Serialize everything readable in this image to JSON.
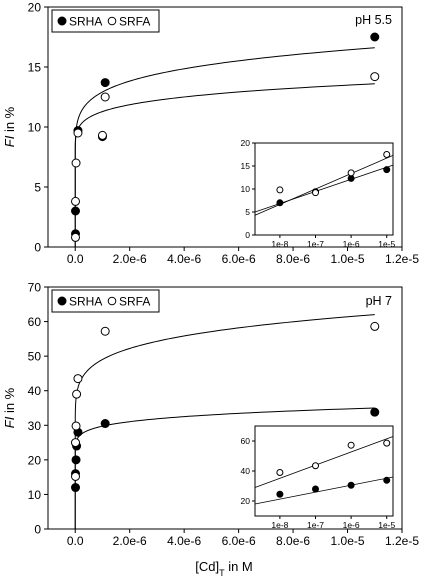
{
  "figure": {
    "xlabel": {
      "main": "[Cd]",
      "sub": "T",
      "tail": " in M"
    },
    "ylabel": {
      "main": "FI",
      "tail": " in %"
    }
  },
  "chart_data": [
    {
      "type": "scatter",
      "panel": "top",
      "annotation": "pH 5.5",
      "xlim": [
        -1e-06,
        1.2e-05
      ],
      "ylim": [
        0,
        20
      ],
      "xticks": [
        0,
        2e-06,
        4e-06,
        6e-06,
        8e-06,
        1e-05,
        1.2e-05
      ],
      "xtick_labels": [
        "0.0",
        "2.0e-6",
        "4.0e-6",
        "6.0e-6",
        "8.0e-6",
        "1.0e-5",
        "1.2e-5"
      ],
      "yticks": [
        0,
        5,
        10,
        15,
        20
      ],
      "ytick_labels": [
        "0",
        "5",
        "10",
        "15",
        "20"
      ],
      "legend_position": "top-left",
      "series": [
        {
          "name": "SRHA",
          "marker": "filled-circle",
          "x": [
            1e-08,
            1e-08,
            1e-07,
            1e-06,
            1.1e-06,
            1.1e-05
          ],
          "y": [
            1.1,
            3.0,
            9.7,
            9.2,
            13.7,
            17.5
          ],
          "fit": {
            "a": 6.1,
            "b": 10.5,
            "p": 0.6,
            "x0": 7e-10
          }
        },
        {
          "name": "SRFA",
          "marker": "open-circle",
          "x": [
            1e-08,
            1e-08,
            3e-08,
            1e-07,
            1e-06,
            1.1e-06,
            1.1e-05
          ],
          "y": [
            0.8,
            3.8,
            7.0,
            9.5,
            9.3,
            12.5,
            14.2
          ],
          "fit": {
            "a": 7.0,
            "b": 6.6,
            "p": 0.6,
            "x0": 7e-10
          }
        }
      ],
      "inset": {
        "xscale": "log",
        "xlim": [
          2e-09,
          1.5e-05
        ],
        "ylim": [
          0,
          20
        ],
        "xticks": [
          1e-08,
          1e-07,
          1e-06,
          1e-05
        ],
        "xtick_labels": [
          "1e-8",
          "1e-7",
          "1e-6",
          "1e-5"
        ],
        "yticks": [
          0,
          5,
          10,
          15,
          20
        ],
        "ytick_labels": [
          "0",
          "5",
          "10",
          "15",
          "20"
        ],
        "series": [
          {
            "name": "SRHA",
            "marker": "filled-circle",
            "x": [
              1e-08,
              1e-07,
              1e-06,
              1e-05
            ],
            "y": [
              7.0,
              9.4,
              12.3,
              14.2
            ],
            "line": [
              [
                2e-09,
                5.0
              ],
              [
                1.5e-05,
                15.2
              ]
            ]
          },
          {
            "name": "SRFA",
            "marker": "open-circle",
            "x": [
              1e-08,
              1e-07,
              1e-06,
              1e-05
            ],
            "y": [
              9.8,
              9.2,
              13.5,
              17.5
            ],
            "line": [
              [
                2e-09,
                4.3
              ],
              [
                1.5e-05,
                17.3
              ]
            ]
          }
        ]
      }
    },
    {
      "type": "scatter",
      "panel": "bottom",
      "annotation": "pH 7",
      "xlim": [
        -1e-06,
        1.2e-05
      ],
      "ylim": [
        0,
        70
      ],
      "xticks": [
        0,
        2e-06,
        4e-06,
        6e-06,
        8e-06,
        1e-05,
        1.2e-05
      ],
      "xtick_labels": [
        "0.0",
        "2.0e-6",
        "4.0e-6",
        "6.0e-6",
        "8.0e-6",
        "1.0e-5",
        "1.2e-5"
      ],
      "yticks": [
        0,
        10,
        20,
        30,
        40,
        50,
        60,
        70
      ],
      "ytick_labels": [
        "0",
        "10",
        "20",
        "30",
        "40",
        "50",
        "60",
        "70"
      ],
      "legend_position": "top-left",
      "series": [
        {
          "name": "SRHA",
          "marker": "filled-circle",
          "x": [
            1e-08,
            1e-08,
            3e-08,
            5e-08,
            1e-07,
            1.1e-06,
            1.1e-05
          ],
          "y": [
            12,
            16,
            20,
            24,
            28,
            30.5,
            33.8
          ],
          "fit": {
            "a": 20.0,
            "b": 15.0,
            "p": 0.6,
            "x0": 5e-10
          }
        },
        {
          "name": "SRFA",
          "marker": "open-circle",
          "x": [
            1e-08,
            1e-08,
            3e-08,
            5e-08,
            1e-07,
            1.1e-06,
            1.1e-05
          ],
          "y": [
            15.2,
            25.0,
            29.8,
            39.0,
            43.5,
            57.2,
            58.6
          ],
          "fit": {
            "a": 25.0,
            "b": 37.0,
            "p": 0.6,
            "x0": 5e-10
          }
        }
      ],
      "inset": {
        "xscale": "log",
        "xlim": [
          2e-09,
          1.5e-05
        ],
        "ylim": [
          10,
          70
        ],
        "xticks": [
          1e-08,
          1e-07,
          1e-06,
          1e-05
        ],
        "xtick_labels": [
          "1e-8",
          "1e-7",
          "1e-6",
          "1e-5"
        ],
        "yticks": [
          20,
          40,
          60
        ],
        "ytick_labels": [
          "20",
          "40",
          "60"
        ],
        "series": [
          {
            "name": "SRHA",
            "marker": "filled-circle",
            "x": [
              1e-08,
              1e-07,
              1e-06,
              1e-05
            ],
            "y": [
              24.5,
              28.0,
              30.5,
              33.8
            ],
            "line": [
              [
                2e-09,
                18.0
              ],
              [
                1.5e-05,
                36.0
              ]
            ]
          },
          {
            "name": "SRFA",
            "marker": "open-circle",
            "x": [
              1e-08,
              1e-07,
              1e-06,
              1e-05
            ],
            "y": [
              39.0,
              43.5,
              57.2,
              58.6
            ],
            "line": [
              [
                2e-09,
                29.0
              ],
              [
                1.5e-05,
                63.0
              ]
            ]
          }
        ]
      }
    }
  ]
}
